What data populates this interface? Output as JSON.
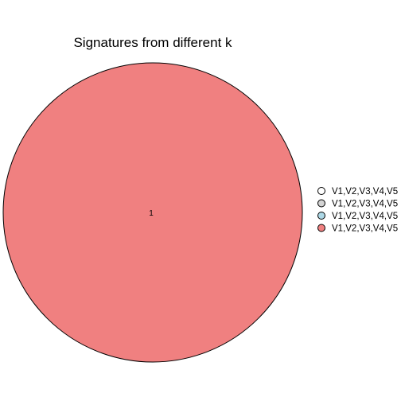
{
  "chart_data": {
    "type": "pie",
    "title": "Signatures from different k",
    "slices": [
      {
        "label": "1",
        "value": 1,
        "color": "#F08080"
      }
    ],
    "legend": {
      "placement": "right",
      "entries": [
        {
          "label": "V1,V2,V3,V4,V5",
          "color": "#FFFFFF"
        },
        {
          "label": "V1,V2,V3,V4,V5",
          "color": "#D3D3D3"
        },
        {
          "label": "V1,V2,V3,V4,V5",
          "color": "#ADD8E6"
        },
        {
          "label": "V1,V2,V3,V4,V5",
          "color": "#F08080"
        }
      ]
    }
  }
}
